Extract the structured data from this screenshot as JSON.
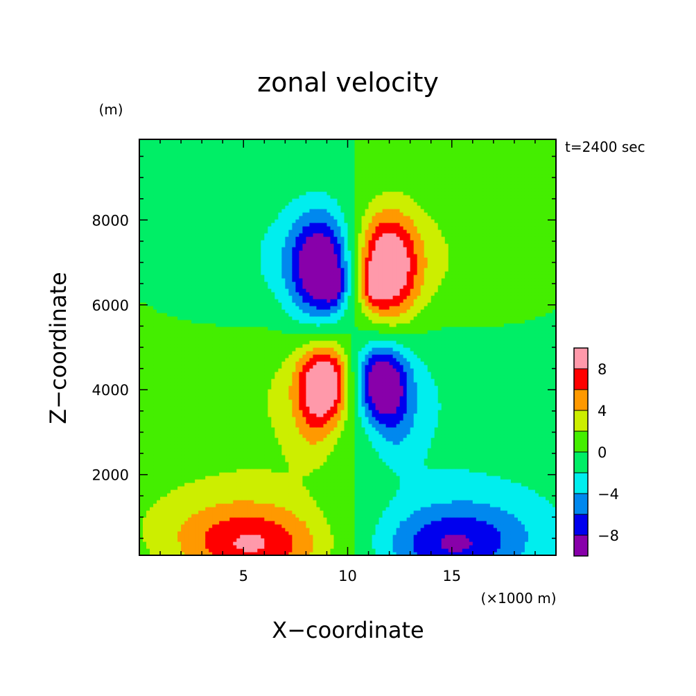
{
  "chart_data": {
    "type": "heatmap",
    "title": "zonal velocity",
    "xlabel": "X−coordinate",
    "ylabel": "Z−coordinate",
    "y_unit": "(m)",
    "x_unit": "(×1000 m)",
    "time_label": "t=2400 sec",
    "xlim": [
      0,
      20
    ],
    "ylim": [
      100,
      9900
    ],
    "x_ticks": [
      {
        "value": 5,
        "label": "5"
      },
      {
        "value": 10,
        "label": "10"
      },
      {
        "value": 15,
        "label": "15"
      }
    ],
    "y_ticks": [
      {
        "value": 2000,
        "label": "2000"
      },
      {
        "value": 4000,
        "label": "4000"
      },
      {
        "value": 6000,
        "label": "6000"
      },
      {
        "value": 8000,
        "label": "8000"
      }
    ],
    "levels": [
      -10,
      -8,
      -6,
      -4,
      -2,
      0,
      2,
      4,
      6,
      8,
      10
    ],
    "colors": [
      "#8800aa",
      "#0000ee",
      "#0088ee",
      "#00eeee",
      "#00ee66",
      "#44ee00",
      "#ccee00",
      "#ff9900",
      "#ff0000",
      "#ff99aa"
    ],
    "colorbar_labels": [
      {
        "value": 8,
        "label": "8"
      },
      {
        "value": 4,
        "label": "4"
      },
      {
        "value": 0,
        "label": "0"
      },
      {
        "value": -4,
        "label": "−4"
      },
      {
        "value": -8,
        "label": "−8"
      }
    ],
    "features": [
      {
        "x": 8.7,
        "z": 6900,
        "amp": -10.5,
        "sx": 1.05,
        "sz": 900
      },
      {
        "x": 9.35,
        "z": 6450,
        "amp": -3.5,
        "sx": 0.35,
        "sz": 300
      },
      {
        "x": 11.9,
        "z": 6900,
        "amp": 10.5,
        "sx": 1.05,
        "sz": 900
      },
      {
        "x": 11.25,
        "z": 6450,
        "amp": 3.5,
        "sx": 0.35,
        "sz": 300
      },
      {
        "x": 8.9,
        "z": 4200,
        "amp": 10.0,
        "sx": 0.9,
        "sz": 650
      },
      {
        "x": 11.6,
        "z": 4200,
        "amp": -10.0,
        "sx": 0.9,
        "sz": 650
      },
      {
        "x": 8.4,
        "z": 3200,
        "amp": 2.6,
        "sx": 0.8,
        "sz": 700
      },
      {
        "x": 12.3,
        "z": 3200,
        "amp": -2.6,
        "sx": 0.8,
        "sz": 700
      },
      {
        "x": 7.0,
        "z": 4200,
        "amp": 1.9,
        "sx": 2.6,
        "sz": 1500
      },
      {
        "x": 13.5,
        "z": 4200,
        "amp": -1.9,
        "sx": 2.6,
        "sz": 1500
      },
      {
        "x": 6.5,
        "z": 6900,
        "amp": -2.2,
        "sx": 2.4,
        "sz": 1300
      },
      {
        "x": 14.1,
        "z": 6900,
        "amp": 2.2,
        "sx": 2.4,
        "sz": 1300
      },
      {
        "x": 5.5,
        "z": 300,
        "amp": 6.0,
        "sx": 2.4,
        "sz": 600
      },
      {
        "x": 15.0,
        "z": 300,
        "amp": -6.0,
        "sx": 2.4,
        "sz": 600
      },
      {
        "x": 4.5,
        "z": 900,
        "amp": 2.2,
        "sx": 3.5,
        "sz": 800
      },
      {
        "x": 16.0,
        "z": 900,
        "amp": -2.2,
        "sx": 3.5,
        "sz": 800
      },
      {
        "x": 5.0,
        "z": 1500,
        "amp": 1.0,
        "sx": 6.0,
        "sz": 1800
      },
      {
        "x": 15.5,
        "z": 1500,
        "amp": -1.0,
        "sx": 6.0,
        "sz": 1800
      }
    ]
  }
}
